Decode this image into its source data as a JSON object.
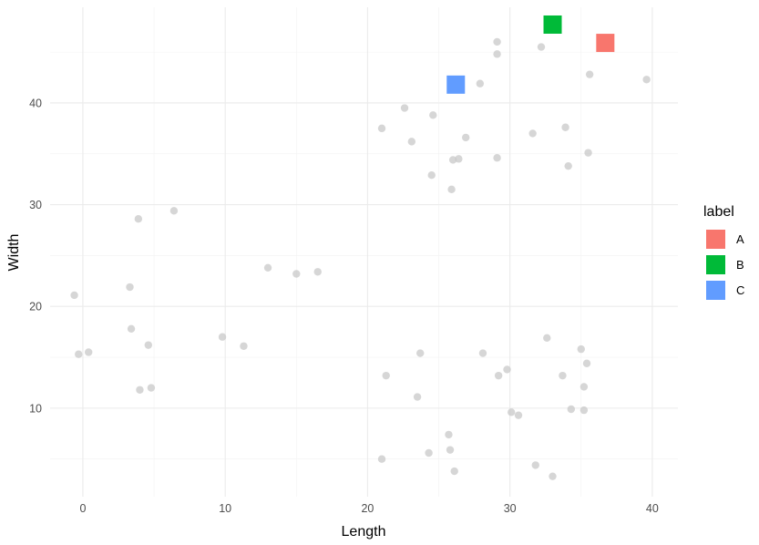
{
  "chart_data": {
    "type": "scatter",
    "title": "",
    "xlabel": "Length",
    "ylabel": "Width",
    "xlim": [
      -2.3,
      41.8
    ],
    "ylim": [
      1.3,
      49.4
    ],
    "x_ticks": [
      0,
      10,
      20,
      30,
      40
    ],
    "y_ticks": [
      10,
      20,
      30,
      40
    ],
    "x_tick_labels": [
      "0",
      "10",
      "20",
      "30",
      "40"
    ],
    "y_tick_labels": [
      "10",
      "20",
      "30",
      "40"
    ],
    "grid": true,
    "legend": {
      "title": "label",
      "position": "right",
      "entries": [
        {
          "label": "A",
          "color": "#F8766D"
        },
        {
          "label": "B",
          "color": "#00BA38"
        },
        {
          "label": "C",
          "color": "#619CFF"
        }
      ]
    },
    "background_points_color": "#c8c8c8",
    "background_points": [
      [
        -0.6,
        21.1
      ],
      [
        -0.3,
        15.3
      ],
      [
        0.4,
        15.5
      ],
      [
        3.3,
        21.9
      ],
      [
        3.4,
        17.8
      ],
      [
        3.9,
        28.6
      ],
      [
        4.0,
        11.8
      ],
      [
        4.6,
        16.2
      ],
      [
        4.8,
        12.0
      ],
      [
        6.4,
        29.4
      ],
      [
        9.8,
        17.0
      ],
      [
        11.3,
        16.1
      ],
      [
        13.0,
        23.8
      ],
      [
        15.0,
        23.2
      ],
      [
        16.5,
        23.4
      ],
      [
        21.0,
        37.5
      ],
      [
        21.0,
        5.0
      ],
      [
        21.3,
        13.2
      ],
      [
        22.6,
        39.5
      ],
      [
        23.1,
        36.2
      ],
      [
        23.5,
        11.1
      ],
      [
        23.7,
        15.4
      ],
      [
        24.3,
        5.6
      ],
      [
        24.5,
        32.9
      ],
      [
        24.6,
        38.8
      ],
      [
        25.7,
        7.4
      ],
      [
        25.8,
        5.9
      ],
      [
        25.9,
        31.5
      ],
      [
        26.0,
        34.4
      ],
      [
        26.1,
        3.8
      ],
      [
        26.4,
        34.5
      ],
      [
        26.9,
        36.6
      ],
      [
        27.9,
        41.9
      ],
      [
        28.1,
        15.4
      ],
      [
        29.1,
        46.0
      ],
      [
        29.1,
        44.8
      ],
      [
        29.1,
        34.6
      ],
      [
        29.2,
        13.2
      ],
      [
        29.8,
        13.8
      ],
      [
        30.1,
        9.6
      ],
      [
        30.6,
        9.3
      ],
      [
        31.6,
        37.0
      ],
      [
        31.8,
        4.4
      ],
      [
        32.2,
        45.5
      ],
      [
        32.6,
        16.9
      ],
      [
        33.0,
        3.3
      ],
      [
        33.7,
        13.2
      ],
      [
        33.9,
        37.6
      ],
      [
        34.1,
        33.8
      ],
      [
        34.3,
        9.9
      ],
      [
        35.0,
        15.8
      ],
      [
        35.2,
        12.1
      ],
      [
        35.2,
        9.8
      ],
      [
        35.4,
        14.4
      ],
      [
        35.5,
        35.1
      ],
      [
        35.6,
        42.8
      ],
      [
        39.6,
        42.3
      ]
    ],
    "series": [
      {
        "name": "A",
        "x": [
          36.7
        ],
        "y": [
          45.9
        ]
      },
      {
        "name": "B",
        "x": [
          33.0
        ],
        "y": [
          47.7
        ]
      },
      {
        "name": "C",
        "x": [
          26.2
        ],
        "y": [
          41.8
        ]
      }
    ]
  }
}
